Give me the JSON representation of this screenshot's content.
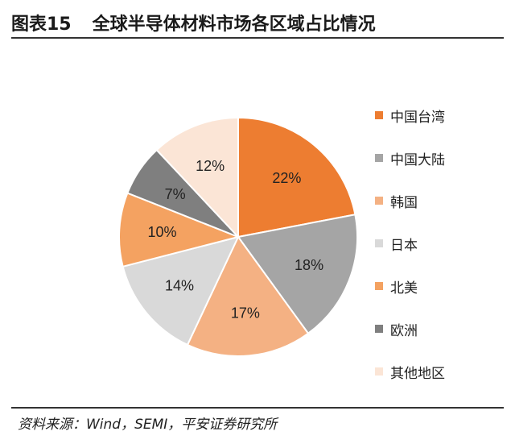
{
  "header": {
    "figure_number": "图表15",
    "title": "全球半导体材料市场各区域占比情况"
  },
  "chart_data": {
    "type": "pie",
    "title": "全球半导体材料市场各区域占比情况",
    "categories": [
      "中国台湾",
      "中国大陆",
      "韩国",
      "日本",
      "北美",
      "欧洲",
      "其他地区"
    ],
    "values": [
      22,
      18,
      17,
      14,
      10,
      7,
      12
    ],
    "value_labels": [
      "22%",
      "18%",
      "17%",
      "14%",
      "10%",
      "7%",
      "12%"
    ],
    "colors": [
      "#ED7D31",
      "#A5A5A5",
      "#F4B183",
      "#D9D9D9",
      "#F4A261",
      "#7F7F7F",
      "#FBE5D6"
    ],
    "label_colors": [
      "#222222",
      "#222222",
      "#222222",
      "#222222",
      "#222222",
      "#222222",
      "#222222"
    ],
    "start_angle_deg": 0,
    "direction": "clockwise",
    "legend_position": "right"
  },
  "legend": {
    "items": [
      {
        "label": "中国台湾",
        "color": "#ED7D31"
      },
      {
        "label": "中国大陆",
        "color": "#A5A5A5"
      },
      {
        "label": "韩国",
        "color": "#F4B183"
      },
      {
        "label": "日本",
        "color": "#D9D9D9"
      },
      {
        "label": "北美",
        "color": "#F4A261"
      },
      {
        "label": "欧洲",
        "color": "#7F7F7F"
      },
      {
        "label": "其他地区",
        "color": "#FBE5D6"
      }
    ]
  },
  "footer": {
    "source": "资料来源：Wind，SEMI，平安证券研究所"
  }
}
